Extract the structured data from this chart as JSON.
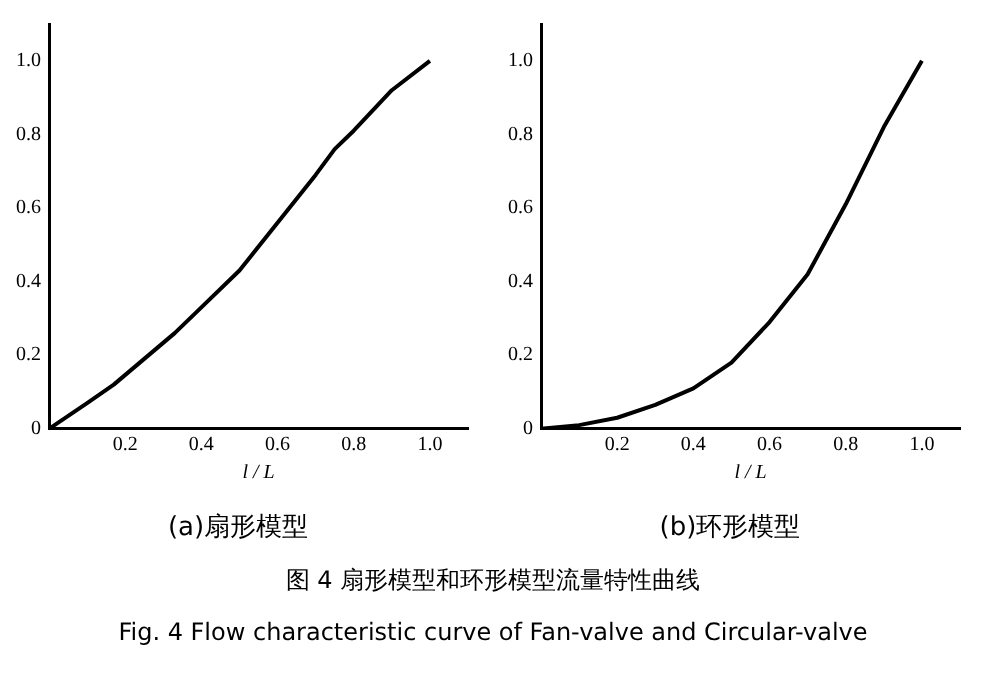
{
  "chart_data": [
    {
      "type": "line",
      "title": "(a)扇形模型",
      "xlabel": "l / L",
      "color": "#000000",
      "grid": false,
      "legend": false,
      "marker": "none",
      "line_style": "solid",
      "x": [
        0,
        0.1,
        0.17,
        0.25,
        0.33,
        0.4,
        0.5,
        0.6,
        0.7,
        0.75,
        0.8,
        0.9,
        1.0
      ],
      "values": [
        0,
        0.07,
        0.12,
        0.19,
        0.26,
        0.33,
        0.43,
        0.56,
        0.69,
        0.76,
        0.81,
        0.92,
        1.0
      ],
      "xlim": [
        0,
        1.1
      ],
      "ylim": [
        0,
        1.1
      ],
      "xticks": [
        0.2,
        0.4,
        0.6,
        0.8,
        {
          "value": 1,
          "label": "1.0"
        }
      ],
      "yticks": [
        0,
        0.2,
        0.4,
        0.6,
        0.8,
        {
          "value": 1,
          "label": "1.0"
        }
      ],
      "annotations": [
        "图 4 扇形模型和环形模型流量特性曲线",
        "Fig. 4 Flow characteristic curve of Fan-valve and Circular-valve"
      ]
    },
    {
      "type": "line",
      "title": "(b)环形模型",
      "xlabel": "l / L",
      "color": "#000000",
      "grid": false,
      "legend": false,
      "marker": "none",
      "line_style": "solid",
      "x": [
        0,
        0.1,
        0.2,
        0.3,
        0.4,
        0.5,
        0.6,
        0.7,
        0.8,
        0.9,
        1.0
      ],
      "values": [
        0,
        0.01,
        0.03,
        0.065,
        0.11,
        0.18,
        0.29,
        0.42,
        0.61,
        0.82,
        1.0
      ],
      "xlim": [
        0,
        1.1
      ],
      "ylim": [
        0,
        1.1
      ],
      "xticks": [
        0.2,
        0.4,
        0.6,
        0.8,
        {
          "value": 1,
          "label": "1.0"
        }
      ],
      "yticks": [
        0,
        0.2,
        0.4,
        0.6,
        0.8,
        {
          "value": 1,
          "label": "1.0"
        }
      ]
    }
  ]
}
